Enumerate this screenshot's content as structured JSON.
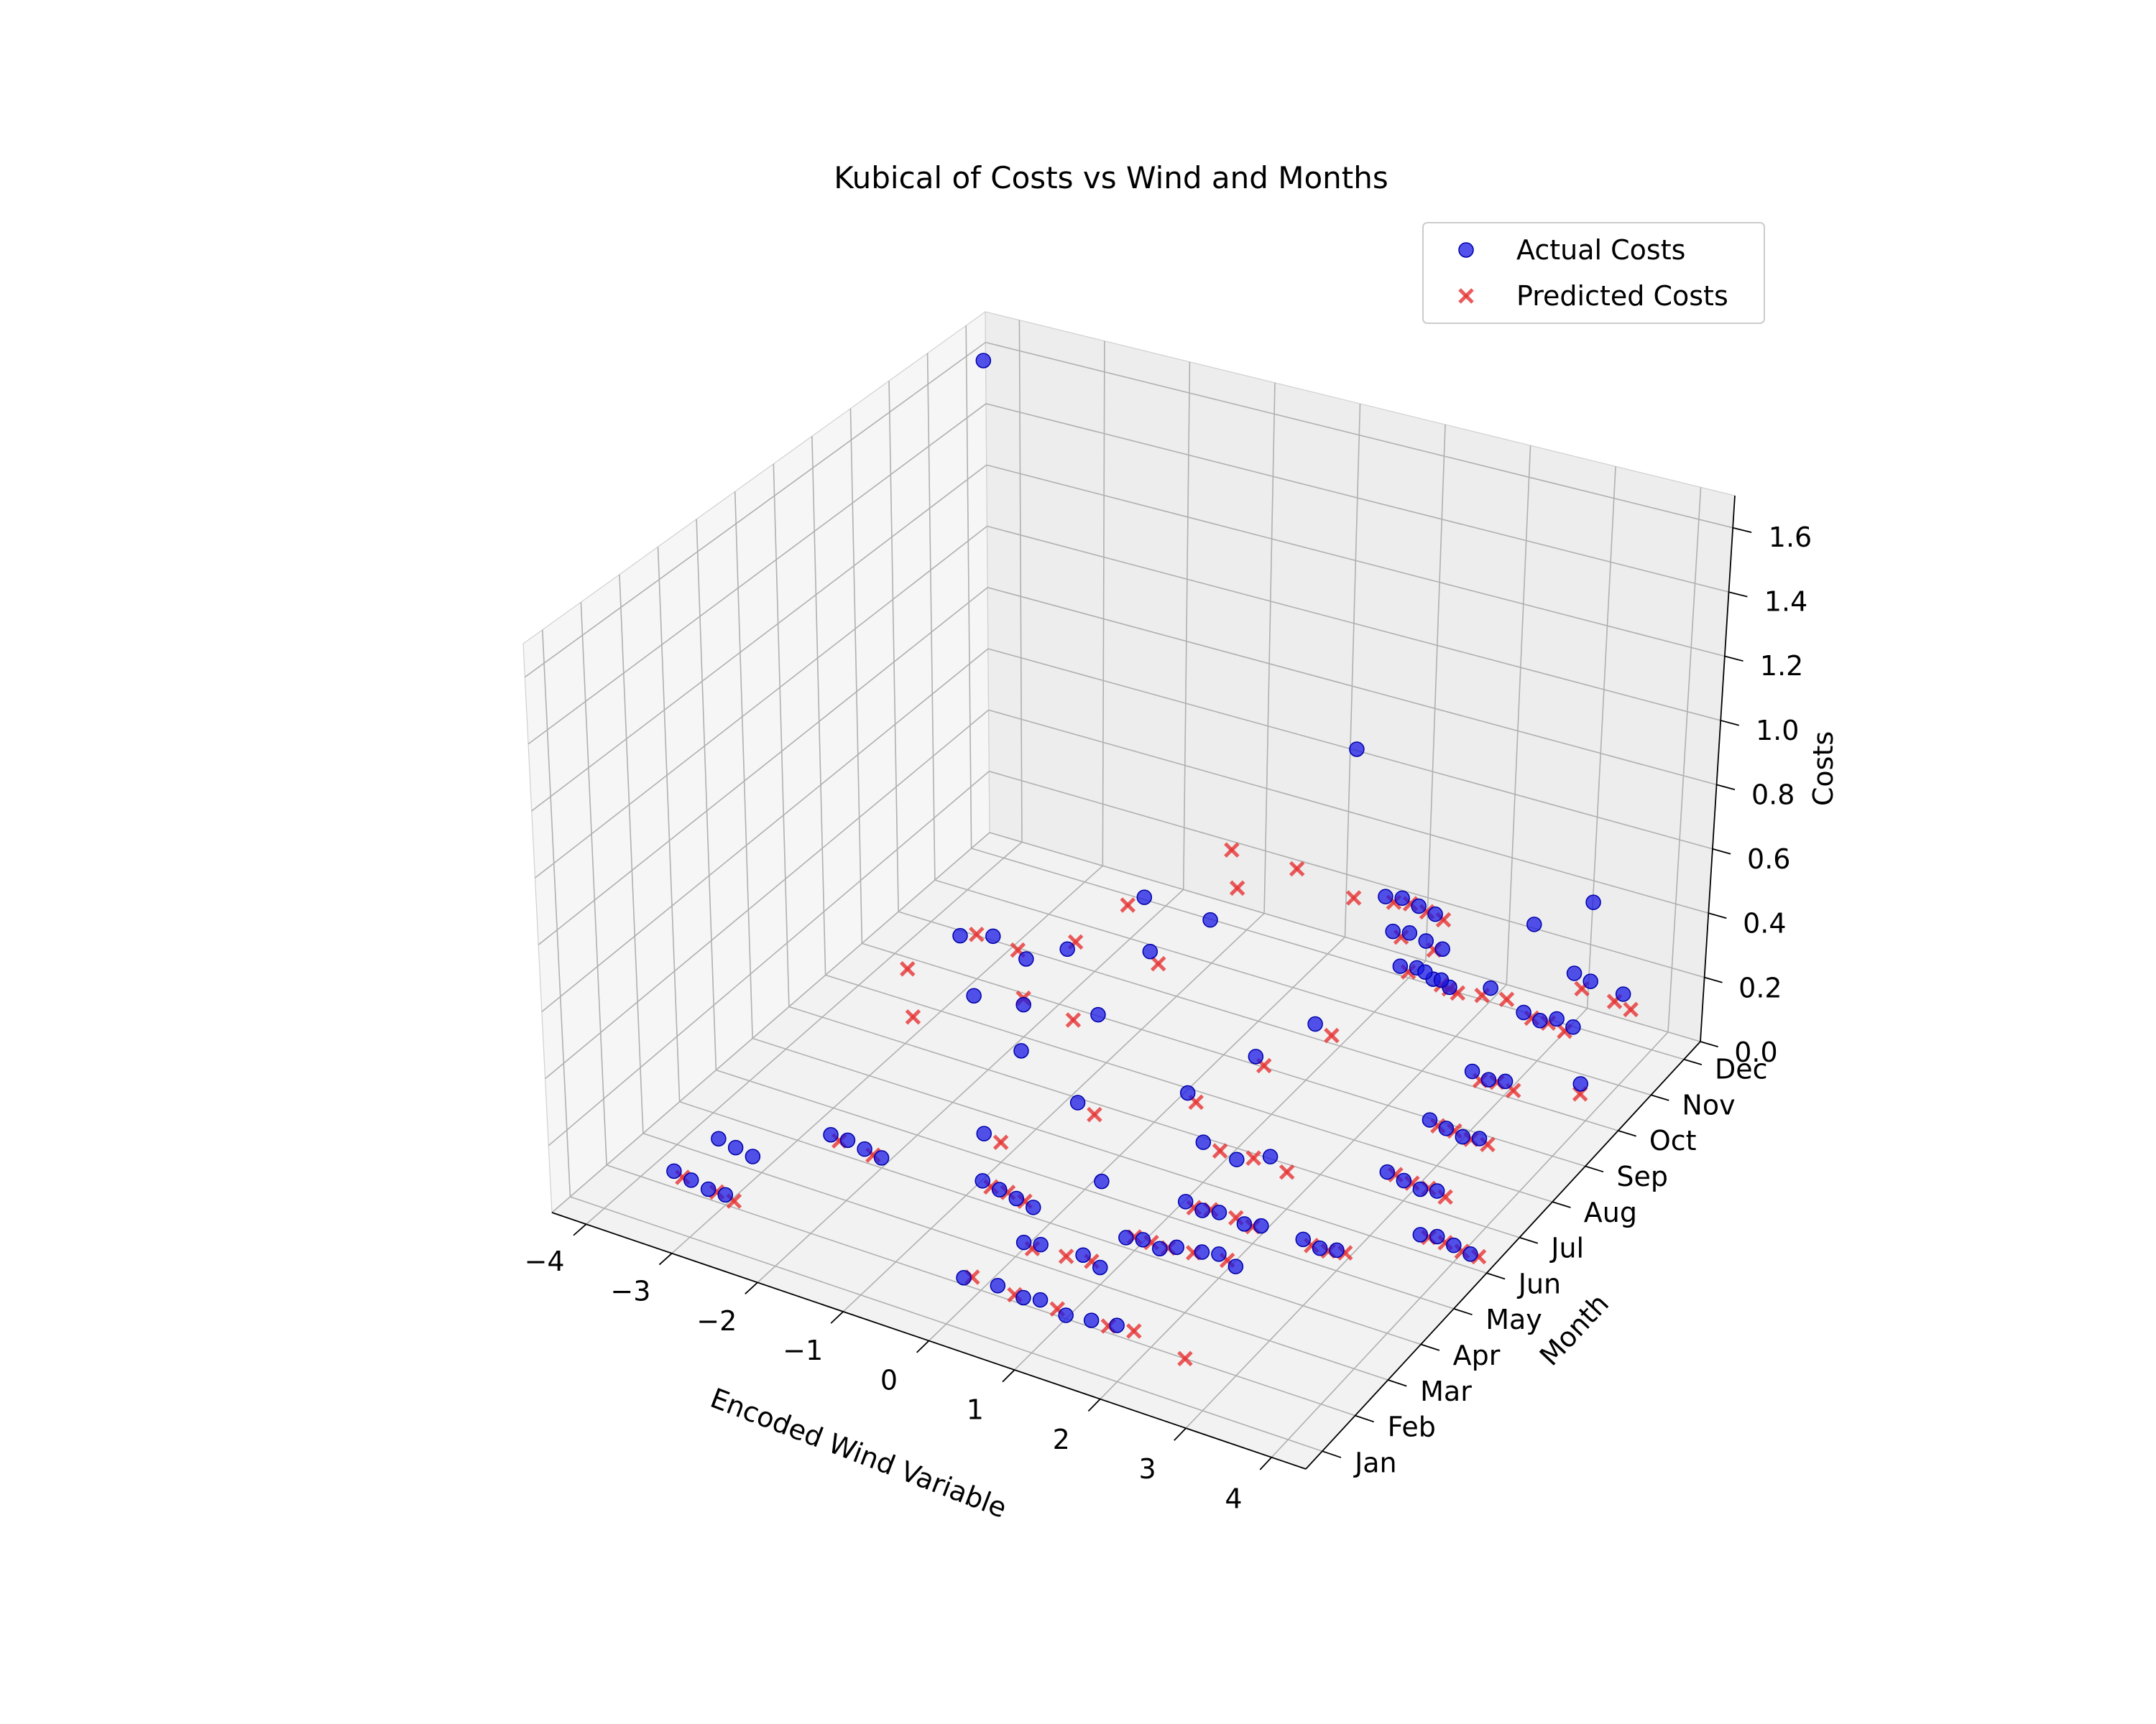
{
  "chart_data": {
    "type": "scatter",
    "title": "Kubical of Costs vs Wind and Months",
    "xlabel": "Encoded Wind Variable",
    "ylabel": "Month",
    "zlabel": "Costs",
    "x_ticks": [
      "−4",
      "−3",
      "−2",
      "−1",
      "0",
      "1",
      "2",
      "3",
      "4"
    ],
    "y_ticks": [
      "Jan",
      "Feb",
      "Mar",
      "Apr",
      "May",
      "Jun",
      "Jul",
      "Aug",
      "Sep",
      "Oct",
      "Nov",
      "Dec"
    ],
    "z_ticks": [
      "0.0",
      "0.2",
      "0.4",
      "0.6",
      "0.8",
      "1.0",
      "1.2",
      "1.4",
      "1.6"
    ],
    "xlim": [
      -4.4,
      4.4
    ],
    "ylim": [
      0.5,
      12.5
    ],
    "zlim": [
      0,
      1.7
    ],
    "grid": true,
    "legend_position": "top-right",
    "colors": {
      "actual": "#1a1ae6",
      "predicted": "#e63232"
    },
    "series": [
      {
        "name": "Actual Costs",
        "marker": "circle",
        "points": [
          [
            -3.6,
            2,
            0.05
          ],
          [
            -3.4,
            2,
            0.04
          ],
          [
            -3.2,
            2,
            0.03
          ],
          [
            -3.0,
            2,
            0.03
          ],
          [
            -3.5,
            3,
            0.06
          ],
          [
            -3.3,
            3,
            0.05
          ],
          [
            -3.1,
            3,
            0.04
          ],
          [
            -2.6,
            4,
            0.05
          ],
          [
            -2.4,
            4,
            0.05
          ],
          [
            -2.2,
            4,
            0.04
          ],
          [
            -2.0,
            4,
            0.03
          ],
          [
            -3.2,
            9,
            0.12
          ],
          [
            -2.8,
            9,
            0.15
          ],
          [
            -2.4,
            9,
            0.11
          ],
          [
            -1.9,
            9,
            0.18
          ],
          [
            -2.6,
            8,
            0.08
          ],
          [
            -2.0,
            8,
            0.1
          ],
          [
            -1.6,
            7,
            0.09
          ],
          [
            -1.1,
            8,
            0.14
          ],
          [
            -0.9,
            9,
            0.25
          ],
          [
            -1.4,
            10,
            0.28
          ],
          [
            -0.6,
            10,
            0.27
          ],
          [
            -0.8,
            4,
            0.06
          ],
          [
            -0.6,
            4,
            0.05
          ],
          [
            -0.4,
            4,
            0.04
          ],
          [
            -0.2,
            4,
            0.03
          ],
          [
            -1.2,
            5,
            0.07
          ],
          [
            -0.5,
            6,
            0.12
          ],
          [
            0.2,
            5,
            0.04
          ],
          [
            0.1,
            3,
            0.05
          ],
          [
            0.3,
            3,
            0.06
          ],
          [
            0.8,
            3,
            0.07
          ],
          [
            1.0,
            3,
            0.05
          ],
          [
            -0.2,
            2,
            0.02
          ],
          [
            0.2,
            2,
            0.03
          ],
          [
            0.5,
            2,
            0.02
          ],
          [
            0.7,
            2,
            0.03
          ],
          [
            1.0,
            2,
            0.01
          ],
          [
            1.3,
            2,
            0.02
          ],
          [
            1.6,
            2,
            0.03
          ],
          [
            0.9,
            4,
            0.03
          ],
          [
            1.1,
            4,
            0.04
          ],
          [
            1.3,
            4,
            0.03
          ],
          [
            1.5,
            4,
            0.05
          ],
          [
            1.8,
            4,
            0.06
          ],
          [
            2.0,
            4,
            0.07
          ],
          [
            2.2,
            4,
            0.05
          ],
          [
            1.2,
            5,
            0.06
          ],
          [
            1.4,
            5,
            0.05
          ],
          [
            1.6,
            5,
            0.06
          ],
          [
            1.9,
            5,
            0.05
          ],
          [
            2.1,
            5,
            0.06
          ],
          [
            1.0,
            6,
            0.12
          ],
          [
            1.4,
            6,
            0.1
          ],
          [
            1.8,
            6,
            0.14
          ],
          [
            0.4,
            7,
            0.12
          ],
          [
            0.8,
            8,
            0.16
          ],
          [
            1.1,
            9,
            0.18
          ],
          [
            1.5,
            10,
            0.5
          ],
          [
            1.7,
            10,
            0.51
          ],
          [
            1.9,
            10,
            0.5
          ],
          [
            2.1,
            10,
            0.49
          ],
          [
            1.6,
            10,
            0.4
          ],
          [
            1.8,
            10,
            0.41
          ],
          [
            2.0,
            10,
            0.4
          ],
          [
            2.2,
            10,
            0.39
          ],
          [
            1.7,
            10,
            0.3
          ],
          [
            1.9,
            10,
            0.31
          ],
          [
            2.1,
            10,
            0.29
          ],
          [
            2.3,
            10,
            0.28
          ],
          [
            1.6,
            11,
            0.17
          ],
          [
            1.8,
            11,
            0.16
          ],
          [
            2.4,
            11,
            0.18
          ],
          [
            0.7,
            11,
            0.8
          ],
          [
            -4.2,
            12,
            1.6
          ],
          [
            2.6,
            5,
            0.06
          ],
          [
            2.8,
            5,
            0.05
          ],
          [
            3.0,
            5,
            0.06
          ],
          [
            2.8,
            7,
            0.07
          ],
          [
            3.0,
            7,
            0.06
          ],
          [
            3.2,
            7,
            0.05
          ],
          [
            3.4,
            7,
            0.06
          ],
          [
            2.9,
            8,
            0.13
          ],
          [
            3.1,
            8,
            0.12
          ],
          [
            3.3,
            8,
            0.11
          ],
          [
            3.5,
            8,
            0.12
          ],
          [
            3.0,
            9,
            0.18
          ],
          [
            3.2,
            9,
            0.17
          ],
          [
            3.4,
            9,
            0.18
          ],
          [
            3.2,
            10,
            0.27
          ],
          [
            3.4,
            10,
            0.26
          ],
          [
            3.6,
            10,
            0.28
          ],
          [
            3.8,
            10,
            0.27
          ],
          [
            3.4,
            11,
            0.3
          ],
          [
            3.6,
            11,
            0.29
          ],
          [
            4.0,
            11,
            0.28
          ],
          [
            3.6,
            6,
            0.05
          ],
          [
            3.8,
            6,
            0.06
          ],
          [
            4.0,
            6,
            0.05
          ],
          [
            4.2,
            6,
            0.04
          ],
          [
            3.2,
            12,
            0.4
          ],
          [
            2.5,
            12,
            0.28
          ],
          [
            4.3,
            9,
            0.24
          ]
        ]
      },
      {
        "name": "Predicted Costs",
        "marker": "x",
        "points": [
          [
            -3.5,
            2,
            0.04
          ],
          [
            -3.1,
            2,
            0.03
          ],
          [
            -2.9,
            2,
            0.02
          ],
          [
            -2.5,
            4,
            0.04
          ],
          [
            -2.1,
            4,
            0.03
          ],
          [
            -3.0,
            9,
            0.14
          ],
          [
            -2.5,
            9,
            0.13
          ],
          [
            -2.0,
            8,
            0.12
          ],
          [
            -1.8,
            9,
            0.21
          ],
          [
            -3.4,
            8,
            0.1
          ],
          [
            -2.9,
            7,
            0.09
          ],
          [
            -1.4,
            8,
            0.1
          ],
          [
            -0.8,
            9,
            0.22
          ],
          [
            -1.6,
            10,
            0.24
          ],
          [
            -0.7,
            11,
            0.26
          ],
          [
            -0.7,
            4,
            0.05
          ],
          [
            -0.5,
            4,
            0.05
          ],
          [
            -0.3,
            4,
            0.04
          ],
          [
            -1.0,
            5,
            0.06
          ],
          [
            -0.3,
            6,
            0.1
          ],
          [
            0.2,
            3,
            0.04
          ],
          [
            0.6,
            3,
            0.05
          ],
          [
            0.9,
            3,
            0.06
          ],
          [
            -0.1,
            2,
            0.03
          ],
          [
            0.4,
            2,
            0.02
          ],
          [
            0.9,
            2,
            0.02
          ],
          [
            1.5,
            2,
            0.02
          ],
          [
            1.8,
            2,
            0.03
          ],
          [
            1.0,
            4,
            0.04
          ],
          [
            1.2,
            4,
            0.04
          ],
          [
            1.4,
            4,
            0.04
          ],
          [
            1.7,
            4,
            0.05
          ],
          [
            2.1,
            4,
            0.06
          ],
          [
            1.3,
            5,
            0.05
          ],
          [
            1.5,
            5,
            0.06
          ],
          [
            1.8,
            5,
            0.06
          ],
          [
            2.0,
            5,
            0.05
          ],
          [
            1.2,
            6,
            0.11
          ],
          [
            1.6,
            6,
            0.12
          ],
          [
            2.0,
            6,
            0.11
          ],
          [
            0.5,
            7,
            0.1
          ],
          [
            0.9,
            8,
            0.14
          ],
          [
            1.3,
            9,
            0.16
          ],
          [
            1.6,
            10,
            0.49
          ],
          [
            1.8,
            10,
            0.5
          ],
          [
            2.0,
            10,
            0.49
          ],
          [
            2.2,
            10,
            0.48
          ],
          [
            1.7,
            10,
            0.39
          ],
          [
            2.1,
            10,
            0.38
          ],
          [
            1.8,
            10,
            0.29
          ],
          [
            2.2,
            10,
            0.28
          ],
          [
            2.4,
            10,
            0.27
          ],
          [
            1.9,
            11,
            0.14
          ],
          [
            2.3,
            11,
            0.15
          ],
          [
            2.6,
            11,
            0.16
          ],
          [
            -1.2,
            12,
            0.24
          ],
          [
            -0.4,
            12,
            0.24
          ],
          [
            0.3,
            12,
            0.2
          ],
          [
            2.7,
            5,
            0.05
          ],
          [
            2.9,
            5,
            0.05
          ],
          [
            3.1,
            5,
            0.06
          ],
          [
            2.9,
            7,
            0.07
          ],
          [
            3.1,
            7,
            0.06
          ],
          [
            3.3,
            7,
            0.06
          ],
          [
            3.5,
            7,
            0.05
          ],
          [
            3.0,
            8,
            0.12
          ],
          [
            3.2,
            8,
            0.12
          ],
          [
            3.4,
            8,
            0.11
          ],
          [
            3.6,
            8,
            0.11
          ],
          [
            3.1,
            9,
            0.16
          ],
          [
            3.3,
            9,
            0.17
          ],
          [
            3.5,
            9,
            0.16
          ],
          [
            3.3,
            10,
            0.26
          ],
          [
            3.5,
            10,
            0.26
          ],
          [
            3.7,
            10,
            0.25
          ],
          [
            3.5,
            11,
            0.26
          ],
          [
            3.9,
            11,
            0.25
          ],
          [
            4.1,
            11,
            0.24
          ],
          [
            3.7,
            6,
            0.05
          ],
          [
            3.9,
            6,
            0.05
          ],
          [
            4.1,
            6,
            0.04
          ],
          [
            4.3,
            6,
            0.04
          ],
          [
            4.3,
            9,
            0.21
          ],
          [
            2.4,
            2,
            0.0
          ]
        ]
      }
    ]
  }
}
